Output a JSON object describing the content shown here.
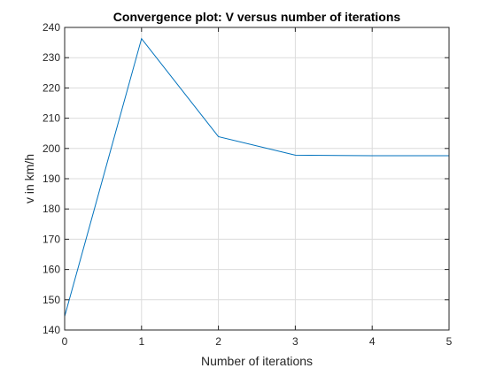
{
  "chart_data": {
    "type": "line",
    "title": "Convergence plot: V versus number of iterations",
    "xlabel": "Number of iterations",
    "ylabel": "v in km/h",
    "xlim": [
      0,
      5
    ],
    "ylim": [
      140,
      240
    ],
    "xticks": [
      0,
      1,
      2,
      3,
      4,
      5
    ],
    "yticks": [
      140,
      150,
      160,
      170,
      180,
      190,
      200,
      210,
      220,
      230,
      240
    ],
    "grid": true,
    "box": true,
    "series": [
      {
        "color": "#0072bd",
        "x": [
          0,
          1,
          2,
          3,
          4,
          5
        ],
        "y": [
          144.5,
          236.3,
          203.9,
          197.8,
          197.6,
          197.6
        ]
      }
    ]
  }
}
